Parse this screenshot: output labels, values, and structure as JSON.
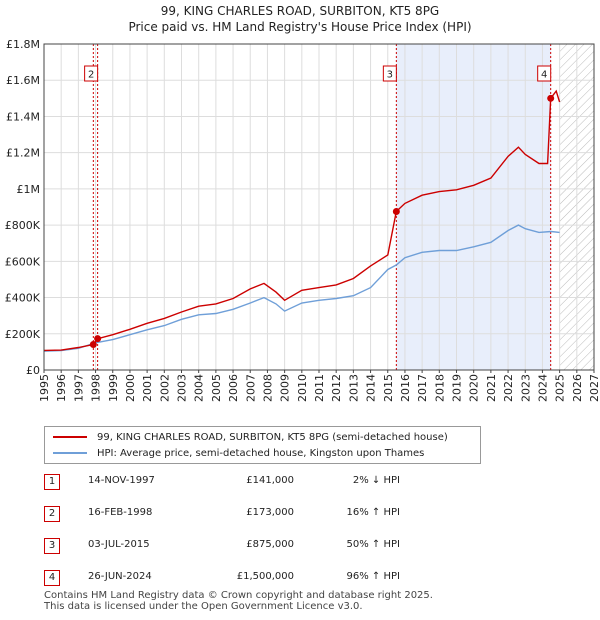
{
  "header": {
    "title_line1": "99, KING CHARLES ROAD, SURBITON, KT5 8PG",
    "title_line2": "Price paid vs. HM Land Registry's House Price Index (HPI)"
  },
  "colors": {
    "property": "#cc0000",
    "hpi": "#6f9fd8",
    "shade": "#e8eefb",
    "grid": "#dddddd"
  },
  "chart_data": {
    "type": "line",
    "xlim": [
      1995,
      2027
    ],
    "ylim": [
      0,
      1800000
    ],
    "x_ticks": [
      1995,
      1996,
      1997,
      1998,
      1999,
      2000,
      2001,
      2002,
      2003,
      2004,
      2005,
      2006,
      2007,
      2008,
      2009,
      2010,
      2011,
      2012,
      2013,
      2014,
      2015,
      2016,
      2017,
      2018,
      2019,
      2020,
      2021,
      2022,
      2023,
      2024,
      2025,
      2026,
      2027
    ],
    "y_ticks": [
      {
        "value": 0,
        "label": "£0"
      },
      {
        "value": 200000,
        "label": "£200K"
      },
      {
        "value": 400000,
        "label": "£400K"
      },
      {
        "value": 600000,
        "label": "£600K"
      },
      {
        "value": 800000,
        "label": "£800K"
      },
      {
        "value": 1000000,
        "label": "£1M"
      },
      {
        "value": 1200000,
        "label": "£1.2M"
      },
      {
        "value": 1400000,
        "label": "£1.4M"
      },
      {
        "value": 1600000,
        "label": "£1.6M"
      },
      {
        "value": 1800000,
        "label": "£1.8M"
      }
    ],
    "shaded_region": [
      2015.5,
      2024.5
    ],
    "hatched_region": [
      2025.0,
      2027
    ],
    "series": [
      {
        "name": "99, KING CHARLES ROAD, SURBITON, KT5 8PG (semi-detached house)",
        "points": [
          [
            1995,
            108000
          ],
          [
            1996,
            110000
          ],
          [
            1997,
            124000
          ],
          [
            1997.87,
            141000
          ],
          [
            1998.12,
            173000
          ],
          [
            1999,
            195000
          ],
          [
            2000,
            225000
          ],
          [
            2001,
            258000
          ],
          [
            2002,
            285000
          ],
          [
            2003,
            320000
          ],
          [
            2004,
            352000
          ],
          [
            2005,
            365000
          ],
          [
            2006,
            395000
          ],
          [
            2007,
            448000
          ],
          [
            2007.8,
            478000
          ],
          [
            2008.5,
            430000
          ],
          [
            2009,
            385000
          ],
          [
            2010,
            440000
          ],
          [
            2011,
            455000
          ],
          [
            2012,
            470000
          ],
          [
            2013,
            505000
          ],
          [
            2014,
            575000
          ],
          [
            2015,
            635000
          ],
          [
            2015.5,
            875000
          ],
          [
            2016,
            920000
          ],
          [
            2017,
            965000
          ],
          [
            2018,
            985000
          ],
          [
            2019,
            995000
          ],
          [
            2020,
            1020000
          ],
          [
            2021,
            1060000
          ],
          [
            2022,
            1180000
          ],
          [
            2022.6,
            1230000
          ],
          [
            2023,
            1190000
          ],
          [
            2023.8,
            1140000
          ],
          [
            2024.3,
            1140000
          ],
          [
            2024.48,
            1500000
          ],
          [
            2024.8,
            1540000
          ],
          [
            2025.0,
            1480000
          ]
        ]
      },
      {
        "name": "HPI: Average price, semi-detached house, Kingston upon Thames",
        "points": [
          [
            1995,
            104000
          ],
          [
            1996,
            107000
          ],
          [
            1997,
            120000
          ],
          [
            1998,
            150000
          ],
          [
            1999,
            168000
          ],
          [
            2000,
            195000
          ],
          [
            2001,
            222000
          ],
          [
            2002,
            245000
          ],
          [
            2003,
            280000
          ],
          [
            2004,
            305000
          ],
          [
            2005,
            312000
          ],
          [
            2006,
            335000
          ],
          [
            2007,
            370000
          ],
          [
            2007.8,
            400000
          ],
          [
            2008.5,
            365000
          ],
          [
            2009,
            325000
          ],
          [
            2010,
            370000
          ],
          [
            2011,
            385000
          ],
          [
            2012,
            395000
          ],
          [
            2013,
            410000
          ],
          [
            2014,
            455000
          ],
          [
            2015,
            555000
          ],
          [
            2015.5,
            580000
          ],
          [
            2016,
            620000
          ],
          [
            2017,
            650000
          ],
          [
            2018,
            660000
          ],
          [
            2019,
            660000
          ],
          [
            2020,
            680000
          ],
          [
            2021,
            705000
          ],
          [
            2022,
            770000
          ],
          [
            2022.6,
            800000
          ],
          [
            2023,
            780000
          ],
          [
            2023.8,
            760000
          ],
          [
            2024.5,
            765000
          ],
          [
            2025.0,
            760000
          ]
        ]
      }
    ],
    "markers": [
      {
        "id": "1",
        "x": 1997.87,
        "y": 141000,
        "show_label": false
      },
      {
        "id": "2",
        "x": 1998.12,
        "y": 173000,
        "show_label": true
      },
      {
        "id": "3",
        "x": 2015.5,
        "y": 875000,
        "show_label": true
      },
      {
        "id": "4",
        "x": 2024.48,
        "y": 1500000,
        "show_label": true
      }
    ]
  },
  "legend": {
    "property_label": "99, KING CHARLES ROAD, SURBITON, KT5 8PG (semi-detached house)",
    "hpi_label": "HPI: Average price, semi-detached house, Kingston upon Thames"
  },
  "transactions": [
    {
      "num": "1",
      "date": "14-NOV-1997",
      "price": "£141,000",
      "hpi": "2% ↓ HPI"
    },
    {
      "num": "2",
      "date": "16-FEB-1998",
      "price": "£173,000",
      "hpi": "16% ↑ HPI"
    },
    {
      "num": "3",
      "date": "03-JUL-2015",
      "price": "£875,000",
      "hpi": "50% ↑ HPI"
    },
    {
      "num": "4",
      "date": "26-JUN-2024",
      "price": "£1,500,000",
      "hpi": "96% ↑ HPI"
    }
  ],
  "footer": {
    "line1": "Contains HM Land Registry data © Crown copyright and database right 2025.",
    "line2": "This data is licensed under the Open Government Licence v3.0."
  }
}
